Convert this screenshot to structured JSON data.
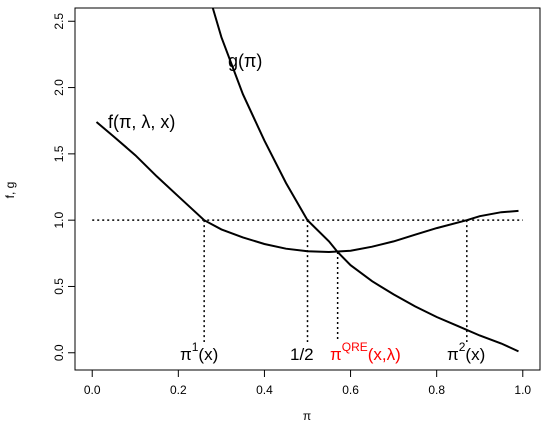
{
  "chart_data": {
    "type": "line",
    "xlabel": "π",
    "ylabel": "f, g",
    "xlim": [
      -0.04,
      1.04
    ],
    "ylim": [
      -0.13,
      2.6
    ],
    "xticks": [
      {
        "value": 0,
        "label": "0.0"
      },
      {
        "value": 0.2,
        "label": "0.2"
      },
      {
        "value": 0.4,
        "label": "0.4"
      },
      {
        "value": 0.6,
        "label": "0.6"
      },
      {
        "value": 0.8,
        "label": "0.8"
      },
      {
        "value": 1,
        "label": "1.0"
      }
    ],
    "yticks": [
      {
        "value": 0,
        "label": "0.0"
      },
      {
        "value": 0.5,
        "label": "0.5"
      },
      {
        "value": 1,
        "label": "1.0"
      },
      {
        "value": 1.5,
        "label": "1.5"
      },
      {
        "value": 2,
        "label": "2.0"
      },
      {
        "value": 2.5,
        "label": "2.5"
      }
    ],
    "series": [
      {
        "name": "f(π, λ, x)",
        "color": "#000000",
        "x": [
          0.01,
          0.05,
          0.1,
          0.15,
          0.2,
          0.26,
          0.3,
          0.35,
          0.4,
          0.45,
          0.5,
          0.55,
          0.6,
          0.65,
          0.7,
          0.75,
          0.8,
          0.87,
          0.9,
          0.95,
          0.99
        ],
        "values": [
          1.74,
          1.63,
          1.49,
          1.33,
          1.18,
          1.0,
          0.93,
          0.87,
          0.82,
          0.785,
          0.765,
          0.76,
          0.77,
          0.8,
          0.84,
          0.89,
          0.94,
          1.0,
          1.03,
          1.06,
          1.07
        ]
      },
      {
        "name": "g(π)",
        "color": "#000000",
        "x": [
          0.28,
          0.3,
          0.35,
          0.4,
          0.45,
          0.5,
          0.55,
          0.57,
          0.6,
          0.65,
          0.7,
          0.75,
          0.8,
          0.85,
          0.9,
          0.95,
          0.99
        ],
        "values": [
          2.6,
          2.38,
          1.95,
          1.6,
          1.28,
          1.0,
          0.84,
          0.76,
          0.66,
          0.54,
          0.44,
          0.35,
          0.27,
          0.2,
          0.13,
          0.07,
          0.01
        ]
      }
    ],
    "hline": 1,
    "vlines": [
      {
        "x": 0.26,
        "top": 1
      },
      {
        "x": 0.5,
        "top": 1
      },
      {
        "x": 0.57,
        "top": 0.76
      },
      {
        "x": 0.87,
        "top": 1
      }
    ],
    "annotations": [
      {
        "text": "π",
        "sup": "1",
        "after": "(x)",
        "color": "#000000"
      },
      {
        "text": "1/2",
        "color": "#000000"
      },
      {
        "text": "π",
        "sup": "QRE",
        "after": "(x,λ)",
        "color": "#ff0000"
      },
      {
        "text": "π",
        "sup": "2",
        "after": "(x)",
        "color": "#000000"
      }
    ]
  }
}
